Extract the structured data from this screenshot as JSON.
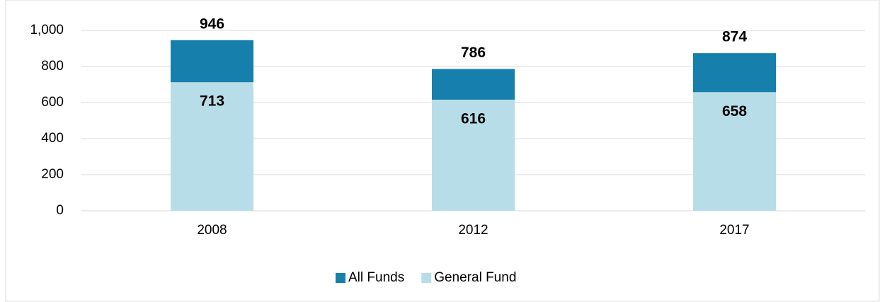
{
  "chart_data": {
    "type": "bar",
    "categories": [
      "2008",
      "2012",
      "2017"
    ],
    "series": [
      {
        "name": "All Funds",
        "color": "#167fab",
        "values": [
          946,
          786,
          874
        ]
      },
      {
        "name": "General Fund",
        "color": "#b7dde8",
        "values": [
          713,
          616,
          658
        ]
      }
    ],
    "ylim": [
      0,
      1000
    ],
    "yticks": [
      0,
      200,
      400,
      600,
      800,
      {
        "value": 1000,
        "label": "1,000"
      }
    ],
    "grid": true,
    "legend": "bottom"
  }
}
